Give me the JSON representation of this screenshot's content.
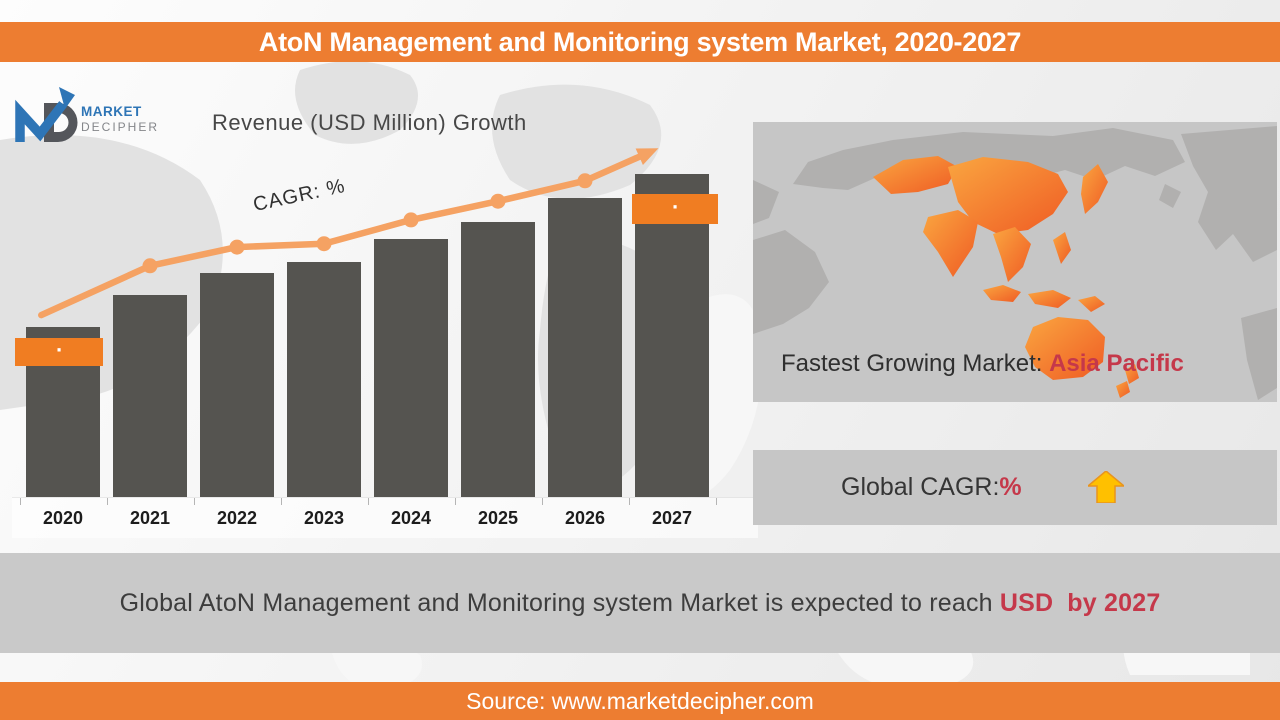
{
  "header": {
    "title": "AtoN Management and Monitoring system Market, 2020-2027"
  },
  "logo": {
    "line1": "MARKET",
    "line2": "DECIPHER"
  },
  "chart": {
    "title": "Revenue (USD Million) Growth",
    "cagr_label": "CAGR: %"
  },
  "chart_data": {
    "type": "bar",
    "title": "Revenue (USD Million) Growth",
    "categories": [
      "2020",
      "2021",
      "2022",
      "2023",
      "2024",
      "2025",
      "2026",
      "2027"
    ],
    "series": [
      {
        "name": "Revenue (USD Million)",
        "values": [
          100,
          119,
          132,
          138,
          152,
          162,
          176,
          190
        ],
        "note": "relative scale estimated from bar heights; numeric value labels are redacted in the image"
      }
    ],
    "trend": {
      "name": "CAGR growth arrow",
      "x_year_offsets": [
        -0.25,
        1,
        2,
        3,
        4,
        5,
        6,
        6.75
      ],
      "values": [
        107,
        136,
        147,
        149,
        163,
        174,
        186,
        203
      ],
      "marker_indices": [
        1,
        2,
        3,
        4,
        5,
        6
      ]
    },
    "callouts": [
      {
        "year": "2020",
        "label": "."
      },
      {
        "year": "2027",
        "label": "."
      }
    ],
    "xlabel": "",
    "ylabel": "Revenue (USD Million)",
    "value_axis_visible": false,
    "grid": false,
    "legend": "none"
  },
  "map_card": {
    "caption": "Fastest Growing Market: ",
    "highlight": "Asia Pacific"
  },
  "cagr_card": {
    "label": "Global CAGR: ",
    "highlight": "%"
  },
  "message": {
    "text": "Global AtoN Management and Monitoring system Market is expected to reach ",
    "highlight_value": "USD",
    "highlight_suffix": "by 2027"
  },
  "footer": {
    "text": "Source: www.marketdecipher.com"
  },
  "colors": {
    "accent_orange": "#ED7D31",
    "callout_orange": "#F07D22",
    "trend_orange": "#F5A263",
    "bar_gray": "#555450",
    "crimson": "#C5384A",
    "card_gray": "#C6C6C6",
    "band_gray": "#C9C9C9",
    "gold": "#FFC000",
    "logo_blue": "#2E75B6"
  }
}
